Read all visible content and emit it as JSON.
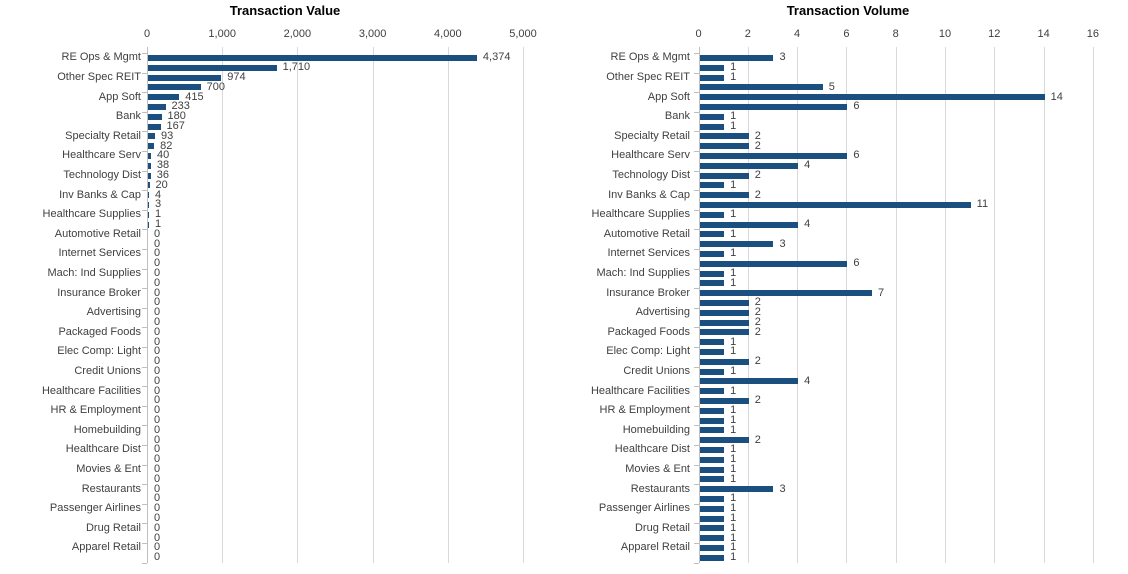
{
  "page": {
    "background": "#ffffff"
  },
  "colors": {
    "bar": "#1B4F80",
    "gridline": "#D9D9D9",
    "axis_line": "#BFBFBF",
    "tick_text": "#404040",
    "category_text": "#404040",
    "value_label_text": "#404040",
    "title_text": "#000000"
  },
  "chart_data": [
    {
      "type": "bar",
      "orientation": "horizontal",
      "title": "Transaction Value",
      "xlim": [
        0,
        5000
      ],
      "x_tick_values": [
        0,
        1000,
        2000,
        3000,
        4000,
        5000
      ],
      "x_tick_labels": [
        "0",
        "1,000",
        "2,000",
        "3,000",
        "4,000",
        "5,000"
      ],
      "grid": true,
      "legend": "none",
      "axis_label_note": "category labels shown on every other bar (52 bars, 26 labels)",
      "categories": [
        "RE Ops & Mgmt",
        "Other Spec REIT",
        "App Soft",
        "Bank",
        "Specialty Retail",
        "Healthcare Serv",
        "Technology Dist",
        "Inv Banks & Cap",
        "Healthcare Supplies",
        "Automotive Retail",
        "Internet Services",
        "Mach: Ind Supplies",
        "Insurance Broker",
        "Advertising",
        "Packaged Foods",
        "Elec Comp: Light",
        "Credit Unions",
        "Healthcare Facilities",
        "HR & Employment",
        "Homebuilding",
        "Healthcare Dist",
        "Movies & Ent",
        "Restaurants",
        "Passenger Airlines",
        "Drug Retail",
        "Apparel Retail"
      ],
      "values": [
        4374,
        1710,
        974,
        700,
        415,
        233,
        180,
        167,
        93,
        82,
        40,
        38,
        36,
        20,
        4,
        3,
        1,
        1,
        0,
        0,
        0,
        0,
        0,
        0,
        0,
        0,
        0,
        0,
        0,
        0,
        0,
        0,
        0,
        0,
        0,
        0,
        0,
        0,
        0,
        0,
        0,
        0,
        0,
        0,
        0,
        0,
        0,
        0,
        0,
        0,
        0,
        0
      ],
      "value_labels": [
        "4,374",
        "1,710",
        "974",
        "700",
        "415",
        "233",
        "180",
        "167",
        "93",
        "82",
        "40",
        "38",
        "36",
        "20",
        "4",
        "3",
        "1",
        "1",
        "0",
        "0",
        "0",
        "0",
        "0",
        "0",
        "0",
        "0",
        "0",
        "0",
        "0",
        "0",
        "0",
        "0",
        "0",
        "0",
        "0",
        "0",
        "0",
        "0",
        "0",
        "0",
        "0",
        "0",
        "0",
        "0",
        "0",
        "0",
        "0",
        "0",
        "0",
        "0",
        "0",
        "0"
      ]
    },
    {
      "type": "bar",
      "orientation": "horizontal",
      "title": "Transaction Volume",
      "xlim": [
        0,
        16
      ],
      "x_tick_values": [
        0,
        2,
        4,
        6,
        8,
        10,
        12,
        14,
        16
      ],
      "x_tick_labels": [
        "0",
        "2",
        "4",
        "6",
        "8",
        "10",
        "12",
        "14",
        "16"
      ],
      "grid": true,
      "legend": "none",
      "axis_label_note": "category labels shown on every other bar (52 bars, 26 labels)",
      "categories": [
        "RE Ops & Mgmt",
        "Other Spec REIT",
        "App Soft",
        "Bank",
        "Specialty Retail",
        "Healthcare Serv",
        "Technology Dist",
        "Inv Banks & Cap",
        "Healthcare Supplies",
        "Automotive Retail",
        "Internet Services",
        "Mach: Ind Supplies",
        "Insurance Broker",
        "Advertising",
        "Packaged Foods",
        "Elec Comp: Light",
        "Credit Unions",
        "Healthcare Facilities",
        "HR & Employment",
        "Homebuilding",
        "Healthcare Dist",
        "Movies & Ent",
        "Restaurants",
        "Passenger Airlines",
        "Drug Retail",
        "Apparel Retail"
      ],
      "values": [
        3,
        1,
        1,
        5,
        14,
        6,
        1,
        1,
        2,
        2,
        6,
        4,
        2,
        1,
        2,
        11,
        1,
        4,
        1,
        3,
        1,
        6,
        1,
        1,
        7,
        2,
        2,
        2,
        2,
        1,
        1,
        2,
        1,
        4,
        1,
        2,
        1,
        1,
        1,
        2,
        1,
        1,
        1,
        1,
        3,
        1,
        1,
        1,
        1,
        1,
        1,
        1
      ],
      "value_labels": [
        "3",
        "1",
        "1",
        "5",
        "14",
        "6",
        "1",
        "1",
        "2",
        "2",
        "6",
        "4",
        "2",
        "1",
        "2",
        "11",
        "1",
        "4",
        "1",
        "3",
        "1",
        "6",
        "1",
        "1",
        "7",
        "2",
        "2",
        "2",
        "2",
        "1",
        "1",
        "2",
        "1",
        "4",
        "1",
        "2",
        "1",
        "1",
        "1",
        "2",
        "1",
        "1",
        "1",
        "1",
        "3",
        "1",
        "1",
        "1",
        "1",
        "1",
        "1",
        "1"
      ]
    }
  ]
}
